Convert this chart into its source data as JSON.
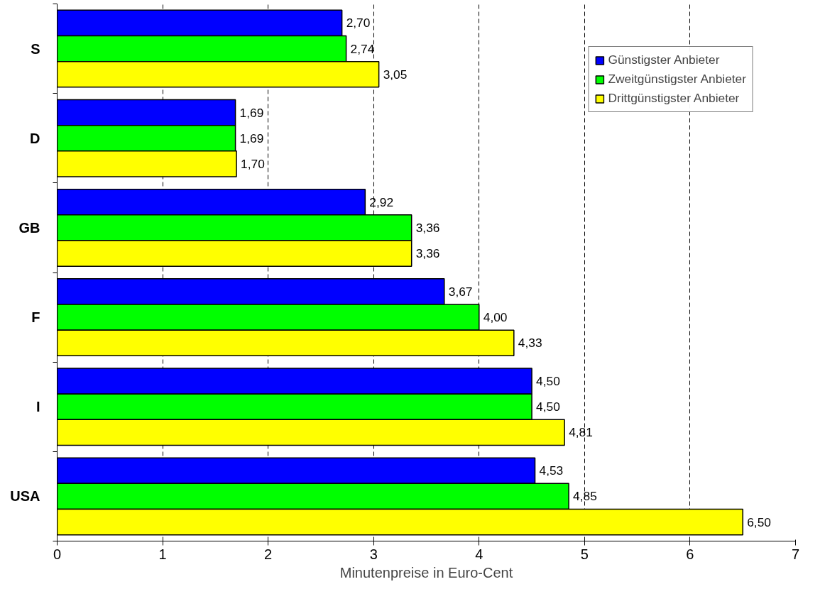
{
  "chart_data": {
    "type": "bar",
    "orientation": "horizontal",
    "xlabel": "Minutenpreise in Euro-Cent",
    "categories": [
      "S",
      "D",
      "GB",
      "F",
      "I",
      "USA"
    ],
    "series": [
      {
        "name": "Günstigster Anbieter",
        "color": "#0000ff",
        "values": [
          2.7,
          1.69,
          2.92,
          3.67,
          4.5,
          4.53
        ],
        "value_labels": [
          "2,70",
          "1,69",
          "2,92",
          "3,67",
          "4,50",
          "4,53"
        ]
      },
      {
        "name": "Zweitgünstigster Anbieter",
        "color": "#00ff00",
        "values": [
          2.74,
          1.69,
          3.36,
          4.0,
          4.5,
          4.85
        ],
        "value_labels": [
          "2,74",
          "1,69",
          "3,36",
          "4,00",
          "4,50",
          "4,85"
        ]
      },
      {
        "name": "Drittgünstigster Anbieter",
        "color": "#ffff00",
        "values": [
          3.05,
          1.7,
          3.36,
          4.33,
          4.81,
          6.5
        ],
        "value_labels": [
          "3,05",
          "1,70",
          "3,36",
          "4,33",
          "4,81",
          "6,50"
        ]
      }
    ],
    "xlim": [
      0,
      7
    ],
    "xticks": [
      0,
      1,
      2,
      3,
      4,
      5,
      6,
      7
    ],
    "grid": "x",
    "legend": "top right"
  }
}
